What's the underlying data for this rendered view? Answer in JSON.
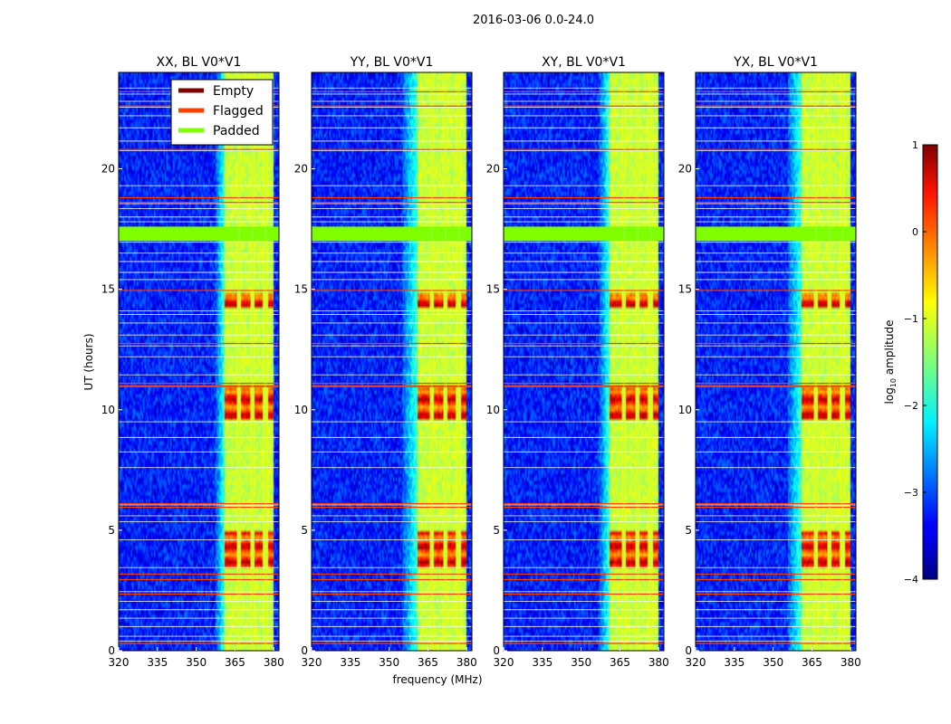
{
  "chart_data": {
    "type": "heatmap",
    "suptitle": "2016-03-06 0.0-24.0",
    "xlabel": "frequency (MHz)",
    "ylabel": "UT (hours)",
    "xlim": [
      320,
      382
    ],
    "ylim": [
      0,
      24
    ],
    "xticks": [
      320,
      335,
      350,
      365,
      380
    ],
    "yticks": [
      0,
      5,
      10,
      15,
      20
    ],
    "panels": [
      {
        "title": "XX, BL V0*V1",
        "rfi_start_mhz": 361.0,
        "shoulder_mhz": 357.5
      },
      {
        "title": "YY, BL V0*V1",
        "rfi_start_mhz": 361.0,
        "shoulder_mhz": 355.0
      },
      {
        "title": "XY, BL V0*V1",
        "rfi_start_mhz": 361.0,
        "shoulder_mhz": 357.0
      },
      {
        "title": "YX, BL V0*V1",
        "rfi_start_mhz": 361.0,
        "shoulder_mhz": 355.5
      }
    ],
    "channel_gap_centers_mhz": [
      366.5,
      371.8,
      376.8
    ],
    "rfi_end_mhz": 380.0,
    "bright_bursts_hours": [
      [
        3.5,
        5.0
      ],
      [
        9.6,
        10.9
      ],
      [
        14.2,
        14.9
      ]
    ],
    "legend": {
      "placement": "upper-left of first panel",
      "entries": [
        {
          "label": "Empty",
          "color": "#800000"
        },
        {
          "label": "Flagged",
          "color": "#ff4000"
        },
        {
          "label": "Padded",
          "color": "#80ff00"
        }
      ]
    },
    "padded_rows_hours": [
      [
        17.0,
        17.6
      ]
    ],
    "flagged_rows_hours": [
      2.95,
      3.18,
      10.95,
      11.1,
      18.6,
      18.8,
      14.95
    ],
    "colorbar": {
      "label_prefix": "log",
      "label_sub": "10",
      "label_suffix": " amplitude",
      "range": [
        -4,
        1
      ],
      "ticks": [
        1,
        0,
        -1,
        -2,
        -3,
        -4
      ],
      "tick_labels": [
        "1",
        "0",
        "−1",
        "−2",
        "−3",
        "−4"
      ]
    }
  }
}
